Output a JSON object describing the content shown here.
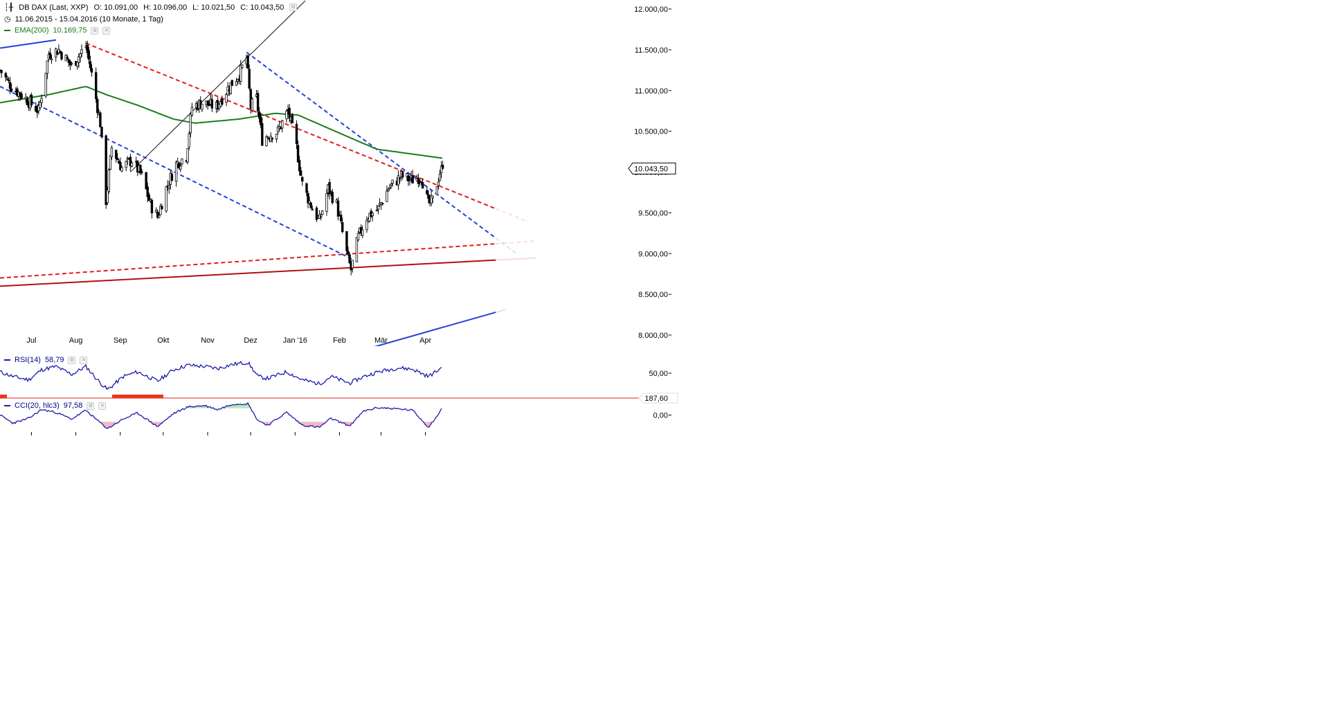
{
  "header": {
    "symbol": "DB DAX (Last, XXP)",
    "open": "O: 10.091,00",
    "high": "H: 10.096,00",
    "low": "L: 10.021,50",
    "close": "C: 10.043,50",
    "range": "11.06.2015 - 15.04.2016 (10 Monate, 1 Tag)"
  },
  "indicators": {
    "ema": {
      "label": "EMA(200)",
      "value": "10.169,75",
      "color": "#1a7a1a"
    },
    "rsi": {
      "label": "RSI(14)",
      "value": "58,79",
      "color": "#1a1aaa"
    },
    "cci": {
      "label": "CCI(20, hlc3)",
      "value": "97,58",
      "color": "#1a1aaa"
    }
  },
  "colors": {
    "candle": "#000000",
    "red_line": "#e21b1b",
    "dark_red_line": "#b01010",
    "blue_line": "#1f3fdc",
    "black_line": "#333333",
    "ema_line": "#1a7a1a",
    "positive_fill": "#b9e6b9",
    "negative_fill": "#f2b9c3",
    "highlight_bar": "#e8361a"
  },
  "chart_data": {
    "type": "candlestick",
    "title": "DB DAX (Last, XXP)",
    "timeframe": "1 Tag",
    "x_labels": [
      "Jul",
      "Aug",
      "Sep",
      "Okt",
      "Nov",
      "Dez",
      "Jan '16",
      "Feb",
      "Mär",
      "Apr"
    ],
    "y_ticks": [
      "12.000,00",
      "11.500,00",
      "11.000,00",
      "10.500,00",
      "10.000,00",
      "9.500,00",
      "9.000,00",
      "8.500,00",
      "8.000,00"
    ],
    "ylim": [
      7850,
      12050
    ],
    "last_price_label": "10.043,50",
    "price_path": [
      [
        "2015-06-11",
        11250
      ],
      [
        "2015-06-19",
        11050
      ],
      [
        "2015-06-29",
        10900
      ],
      [
        "2015-07-08",
        10750
      ],
      [
        "2015-07-15",
        11450
      ],
      [
        "2015-07-22",
        11500
      ],
      [
        "2015-07-31",
        11300
      ],
      [
        "2015-08-10",
        11550
      ],
      [
        "2015-08-14",
        11200
      ],
      [
        "2015-08-20",
        10600
      ],
      [
        "2015-08-24",
        9650
      ],
      [
        "2015-08-28",
        10300
      ],
      [
        "2015-09-04",
        10050
      ],
      [
        "2015-09-11",
        10150
      ],
      [
        "2015-09-18",
        9950
      ],
      [
        "2015-09-24",
        9600
      ],
      [
        "2015-09-29",
        9450
      ],
      [
        "2015-10-05",
        9800
      ],
      [
        "2015-10-12",
        10100
      ],
      [
        "2015-10-19",
        10200
      ],
      [
        "2015-10-23",
        10800
      ],
      [
        "2015-10-30",
        10850
      ],
      [
        "2015-11-09",
        10800
      ],
      [
        "2015-11-18",
        11050
      ],
      [
        "2015-11-25",
        11200
      ],
      [
        "2015-11-30",
        11400
      ],
      [
        "2015-12-03",
        10800
      ],
      [
        "2015-12-07",
        10900
      ],
      [
        "2015-12-11",
        10400
      ],
      [
        "2015-12-15",
        10450
      ],
      [
        "2015-12-22",
        10500
      ],
      [
        "2015-12-29",
        10750
      ],
      [
        "2016-01-04",
        10300
      ],
      [
        "2016-01-08",
        9850
      ],
      [
        "2016-01-15",
        9550
      ],
      [
        "2016-01-20",
        9400
      ],
      [
        "2016-01-26",
        9800
      ],
      [
        "2016-02-01",
        9600
      ],
      [
        "2016-02-08",
        9000
      ],
      [
        "2016-02-11",
        8800
      ],
      [
        "2016-02-16",
        9200
      ],
      [
        "2016-02-22",
        9450
      ],
      [
        "2016-03-01",
        9550
      ],
      [
        "2016-03-08",
        9800
      ],
      [
        "2016-03-17",
        9950
      ],
      [
        "2016-03-24",
        9900
      ],
      [
        "2016-03-31",
        9950
      ],
      [
        "2016-04-05",
        9600
      ],
      [
        "2016-04-08",
        9650
      ],
      [
        "2016-04-13",
        10000
      ],
      [
        "2016-04-15",
        10043.5
      ]
    ],
    "ema200": [
      [
        "2015-06-11",
        10850
      ],
      [
        "2015-07-15",
        10950
      ],
      [
        "2015-08-10",
        11050
      ],
      [
        "2015-08-24",
        10950
      ],
      [
        "2015-09-15",
        10820
      ],
      [
        "2015-10-10",
        10650
      ],
      [
        "2015-10-25",
        10600
      ],
      [
        "2015-11-25",
        10650
      ],
      [
        "2015-12-20",
        10720
      ],
      [
        "2016-01-05",
        10700
      ],
      [
        "2016-01-31",
        10500
      ],
      [
        "2016-02-29",
        10280
      ],
      [
        "2016-04-15",
        10169.75
      ]
    ],
    "trend_lines": [
      {
        "name": "red-dashed-upper",
        "style": "dashed",
        "color": "red",
        "points": [
          [
            "2015-08-10",
            11580
          ],
          [
            "2016-05-22",
            9550
          ]
        ]
      },
      {
        "name": "red-dashed-lower",
        "style": "dashed",
        "color": "red",
        "points": [
          [
            "2015-06-11",
            8700
          ],
          [
            "2016-05-22",
            9120
          ]
        ]
      },
      {
        "name": "dark-red-solid",
        "style": "solid",
        "color": "darkred",
        "points": [
          [
            "2015-06-11",
            8600
          ],
          [
            "2016-05-22",
            8920
          ]
        ]
      },
      {
        "name": "blue-dashed-upper",
        "style": "dashed",
        "color": "blue",
        "points": [
          [
            "2015-11-30",
            11470
          ],
          [
            "2016-05-22",
            9190
          ]
        ]
      },
      {
        "name": "blue-dashed-lower",
        "style": "dashed",
        "color": "blue",
        "points": [
          [
            "2015-06-11",
            11050
          ],
          [
            "2016-02-12",
            8930
          ]
        ]
      },
      {
        "name": "blue-solid-lower",
        "style": "solid",
        "color": "blue",
        "points": [
          [
            "2016-02-26",
            7850
          ],
          [
            "2016-05-22",
            8280
          ]
        ]
      },
      {
        "name": "blue-solid-top",
        "style": "solid",
        "color": "blue",
        "points": [
          [
            "2015-06-11",
            11520
          ],
          [
            "2015-07-20",
            11620
          ]
        ]
      },
      {
        "name": "black-solid",
        "style": "solid",
        "color": "black",
        "points": [
          [
            "2015-09-10",
            10000
          ],
          [
            "2016-01-10",
            12100
          ]
        ]
      }
    ],
    "rsi": {
      "label": "RSI(14)",
      "value": 58.79,
      "ytick": "50,00",
      "ylim": [
        20,
        80
      ],
      "values": [
        [
          "2015-06-11",
          52
        ],
        [
          "2015-06-20",
          45
        ],
        [
          "2015-07-01",
          40
        ],
        [
          "2015-07-10",
          55
        ],
        [
          "2015-07-20",
          60
        ],
        [
          "2015-07-31",
          48
        ],
        [
          "2015-08-10",
          60
        ],
        [
          "2015-08-18",
          40
        ],
        [
          "2015-08-25",
          25
        ],
        [
          "2015-09-05",
          45
        ],
        [
          "2015-09-15",
          52
        ],
        [
          "2015-09-29",
          38
        ],
        [
          "2015-10-10",
          55
        ],
        [
          "2015-10-20",
          62
        ],
        [
          "2015-11-01",
          60
        ],
        [
          "2015-11-10",
          57
        ],
        [
          "2015-11-20",
          63
        ],
        [
          "2015-12-01",
          66
        ],
        [
          "2015-12-08",
          45
        ],
        [
          "2015-12-15",
          42
        ],
        [
          "2015-12-28",
          52
        ],
        [
          "2016-01-08",
          40
        ],
        [
          "2016-01-20",
          34
        ],
        [
          "2016-01-28",
          45
        ],
        [
          "2016-02-10",
          35
        ],
        [
          "2016-02-20",
          45
        ],
        [
          "2016-03-01",
          52
        ],
        [
          "2016-03-15",
          58
        ],
        [
          "2016-03-25",
          56
        ],
        [
          "2016-04-05",
          45
        ],
        [
          "2016-04-15",
          58.79
        ]
      ]
    },
    "cci": {
      "label": "CCI(20, hlc3)",
      "value": 97.58,
      "ytick": "0,00",
      "marker": "187,60",
      "ylim": [
        -250,
        250
      ],
      "values": [
        [
          "2015-06-11",
          0
        ],
        [
          "2015-06-20",
          -120
        ],
        [
          "2015-07-01",
          -50
        ],
        [
          "2015-07-10",
          80
        ],
        [
          "2015-07-20",
          40
        ],
        [
          "2015-07-31",
          -60
        ],
        [
          "2015-08-10",
          70
        ],
        [
          "2015-08-18",
          -80
        ],
        [
          "2015-08-25",
          -200
        ],
        [
          "2015-09-05",
          -60
        ],
        [
          "2015-09-15",
          30
        ],
        [
          "2015-09-29",
          -170
        ],
        [
          "2015-10-10",
          20
        ],
        [
          "2015-10-20",
          120
        ],
        [
          "2015-11-01",
          140
        ],
        [
          "2015-11-10",
          80
        ],
        [
          "2015-11-20",
          160
        ],
        [
          "2015-12-01",
          170
        ],
        [
          "2015-12-08",
          -80
        ],
        [
          "2015-12-15",
          -150
        ],
        [
          "2015-12-28",
          40
        ],
        [
          "2016-01-08",
          -150
        ],
        [
          "2016-01-20",
          -180
        ],
        [
          "2016-01-28",
          -50
        ],
        [
          "2016-02-10",
          -160
        ],
        [
          "2016-02-20",
          60
        ],
        [
          "2016-03-01",
          110
        ],
        [
          "2016-03-15",
          90
        ],
        [
          "2016-03-25",
          70
        ],
        [
          "2016-04-05",
          -180
        ],
        [
          "2016-04-15",
          97.58
        ]
      ]
    }
  }
}
